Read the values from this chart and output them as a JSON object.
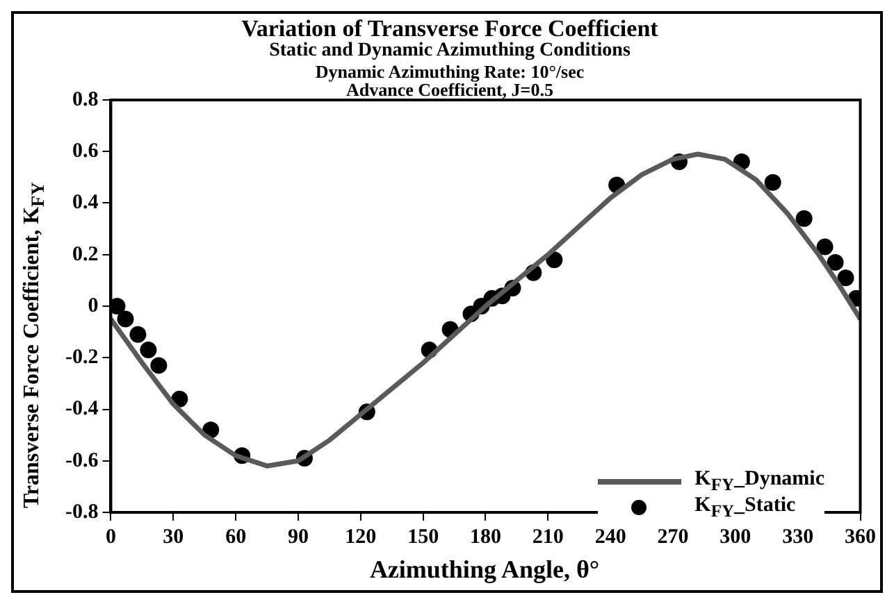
{
  "chart_data": {
    "type": "line",
    "title": "Variation of Transverse Force Coefficient",
    "subtitle": "Static and Dynamic Azimuthing Conditions",
    "annotations": [
      "Dynamic Azimuthing Rate: 10°/sec",
      "Advance Coefficient, J=0.5"
    ],
    "xlabel": "Azimuthing Angle, θ°",
    "ylabel": "Transverse Force Coefficient, K$_{FY}$",
    "xlim": [
      0,
      360
    ],
    "xticks": [
      0,
      30,
      60,
      90,
      120,
      150,
      180,
      210,
      240,
      270,
      300,
      330,
      360
    ],
    "ylim": [
      -0.8,
      0.8
    ],
    "yticks": [
      -0.8,
      -0.6,
      -0.4,
      -0.2,
      0,
      0.2,
      0.4,
      0.6,
      0.8
    ],
    "grid": false,
    "legend": "bottom right",
    "series": [
      {
        "name": "K$_{FY}$_Dynamic",
        "color": "#5a5a5a",
        "marker": "none",
        "line_style": "solid",
        "x": [
          0,
          15,
          30,
          45,
          60,
          75,
          90,
          105,
          120,
          135,
          150,
          165,
          180,
          195,
          210,
          225,
          240,
          255,
          270,
          282,
          295,
          310,
          325,
          340,
          350,
          360
        ],
        "values": [
          -0.05,
          -0.22,
          -0.38,
          -0.5,
          -0.58,
          -0.62,
          -0.6,
          -0.52,
          -0.42,
          -0.32,
          -0.22,
          -0.11,
          0.0,
          0.1,
          0.2,
          0.31,
          0.42,
          0.51,
          0.57,
          0.59,
          0.57,
          0.49,
          0.36,
          0.2,
          0.08,
          -0.05
        ]
      },
      {
        "name": "K$_{FY}$_Static",
        "type": "scatter",
        "color": "#000000",
        "marker": "circle",
        "x": [
          3,
          7,
          13,
          18,
          23,
          33,
          48,
          63,
          93,
          123,
          153,
          163,
          173,
          178,
          183,
          188,
          193,
          203,
          213,
          243,
          273,
          303,
          318,
          333,
          343,
          348,
          353,
          358
        ],
        "values": [
          0,
          -0.05,
          -0.11,
          -0.17,
          -0.23,
          -0.36,
          -0.48,
          -0.58,
          -0.59,
          -0.41,
          -0.17,
          -0.09,
          -0.03,
          0,
          0.03,
          0.04,
          0.07,
          0.13,
          0.18,
          0.47,
          0.56,
          0.56,
          0.48,
          0.34,
          0.23,
          0.17,
          0.11,
          0.03
        ]
      }
    ]
  }
}
